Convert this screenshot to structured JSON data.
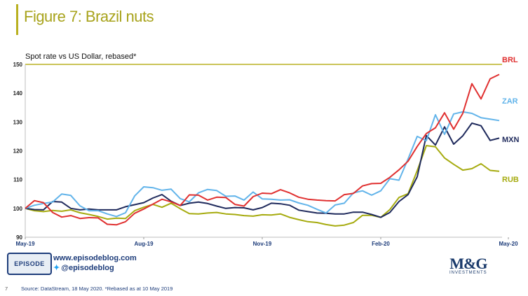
{
  "title": "Figure 7: Brazil nuts",
  "subtitle": "Spot rate vs US Dollar, rebased*",
  "page_number": "7",
  "source": "Source: DataStream, 18 May 2020. *Rebased as at 10 May 2019",
  "footer": {
    "episode_logo": "EPISODE",
    "website": "www.episodeblog.com",
    "twitter": "@episodeblog",
    "company_logo": "M&G",
    "company_sub": "INVESTMENTS"
  },
  "colors": {
    "BRL": "#e03030",
    "ZAR": "#62b4ea",
    "MXN": "#1f2a5c",
    "RUB": "#a6ab0f",
    "grid": "#b8b020",
    "title": "#a8a31c"
  },
  "chart_data": {
    "type": "line",
    "title": "Figure 7: Brazil nuts",
    "subtitle": "Spot rate vs US Dollar, rebased*",
    "xlabel": "",
    "ylabel": "",
    "ylim": [
      90,
      150
    ],
    "yticks": [
      90,
      100,
      110,
      120,
      130,
      140,
      150
    ],
    "xticks": [
      {
        "label": "May-19",
        "index": 0
      },
      {
        "label": "Aug-19",
        "index": 13
      },
      {
        "label": "Nov-19",
        "index": 26
      },
      {
        "label": "Feb-20",
        "index": 39
      },
      {
        "label": "May-20",
        "index": 53
      }
    ],
    "legend": "end-of-line labels",
    "series": [
      {
        "name": "BRL",
        "values": [
          100,
          102.7,
          102,
          98.6,
          97,
          97.5,
          96.5,
          96.8,
          96.7,
          94.5,
          94.3,
          95.4,
          98.3,
          99.8,
          101.5,
          103.2,
          102.3,
          101,
          104.7,
          104.6,
          102.9,
          103.9,
          103.8,
          101.4,
          100.8,
          104.1,
          105.3,
          105.1,
          106.5,
          105.4,
          103.9,
          103.2,
          102.9,
          102.7,
          102.6,
          104.8,
          105.2,
          107.8,
          108.6,
          108.7,
          110.8,
          113.4,
          116.4,
          121.5,
          126,
          128,
          133.2,
          127.5,
          133,
          143.3,
          138,
          145,
          146.5
        ]
      },
      {
        "name": "ZAR",
        "values": [
          100,
          101.1,
          101.7,
          102.2,
          105,
          104.5,
          100.9,
          99.2,
          99.2,
          98.1,
          97.2,
          98.5,
          104.3,
          107.5,
          107.2,
          106.3,
          106.7,
          103.4,
          102.3,
          105.4,
          106.6,
          106.2,
          104.2,
          104.3,
          102.9,
          105.7,
          103.3,
          103.2,
          102.9,
          103,
          101.9,
          101.1,
          99.7,
          98.4,
          101.2,
          101.8,
          105.4,
          106.1,
          104.6,
          106.1,
          110.3,
          109.8,
          117.2,
          125,
          123.5,
          132.5,
          125.7,
          132.8,
          133.5,
          133,
          131.5,
          131,
          130.5
        ]
      },
      {
        "name": "MXN",
        "values": [
          100,
          99.6,
          99.5,
          102.4,
          102.2,
          100,
          99.5,
          99.8,
          99.5,
          99.5,
          99.5,
          100.6,
          101.3,
          102,
          103.6,
          104.8,
          102.5,
          101,
          101.8,
          102.2,
          101.7,
          100.8,
          100,
          100.3,
          100.2,
          99.5,
          100.3,
          101.8,
          101.6,
          101.1,
          99.4,
          98.9,
          98.4,
          98.3,
          98.1,
          98.1,
          98.7,
          98.7,
          97.9,
          96.9,
          98.6,
          102.4,
          104.8,
          111,
          125.3,
          122,
          128.3,
          122.3,
          125.2,
          129.6,
          128.7,
          123.6,
          124.4
        ]
      },
      {
        "name": "RUB",
        "values": [
          100,
          99.2,
          98.9,
          99.3,
          99,
          99.5,
          98.5,
          97.9,
          97.2,
          96.3,
          96.6,
          96.5,
          99.2,
          100.4,
          101.4,
          100.4,
          101.8,
          99.9,
          98.2,
          98.1,
          98.4,
          98.6,
          98.1,
          97.9,
          97.5,
          97.3,
          97.8,
          97.7,
          98.1,
          96.9,
          96.1,
          95.4,
          95.1,
          94.4,
          93.9,
          94.2,
          95.1,
          97.6,
          97.6,
          96.9,
          99.6,
          103.8,
          105.1,
          113.1,
          121.8,
          121.4,
          117.5,
          115.3,
          113.3,
          113.8,
          115.5,
          113.2,
          112.9
        ]
      }
    ]
  }
}
